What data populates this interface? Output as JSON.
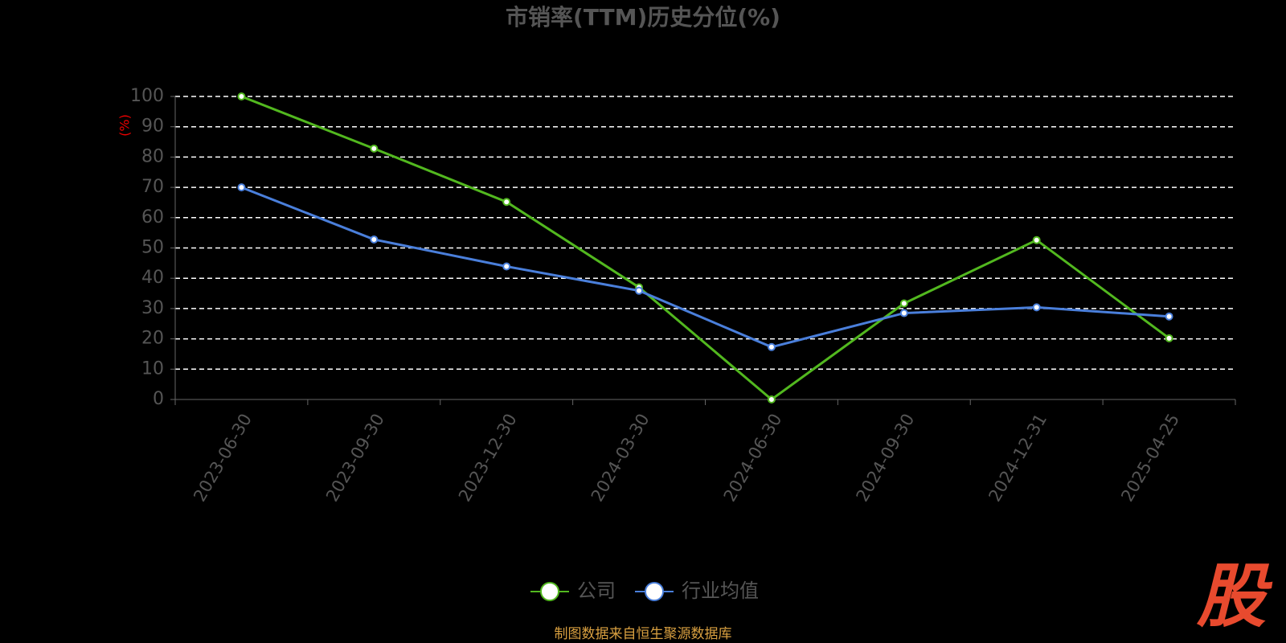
{
  "chart_data": {
    "type": "line",
    "title": "市销率(TTM)历史分位(%)",
    "y_label": "(%)",
    "categories": [
      "2023-06-30",
      "2023-09-30",
      "2023-12-30",
      "2024-03-30",
      "2024-06-30",
      "2024-09-30",
      "2024-12-31",
      "2025-04-25"
    ],
    "series": [
      {
        "name": "公司",
        "color": "#52b81f",
        "values": [
          100,
          82.8,
          65.2,
          37,
          0,
          31.7,
          52.6,
          20.2
        ]
      },
      {
        "name": "行业均值",
        "color": "#4a7fdb",
        "values": [
          70,
          52.8,
          43.9,
          35.9,
          17.3,
          28.5,
          30.4,
          27.4
        ]
      }
    ],
    "ylim": [
      0,
      100
    ],
    "yticks": [
      0,
      10,
      20,
      30,
      40,
      50,
      60,
      70,
      80,
      90,
      100
    ],
    "grid": true,
    "legend": "bottom",
    "source": "制图数据来自恒生聚源数据库",
    "logo": "股"
  }
}
